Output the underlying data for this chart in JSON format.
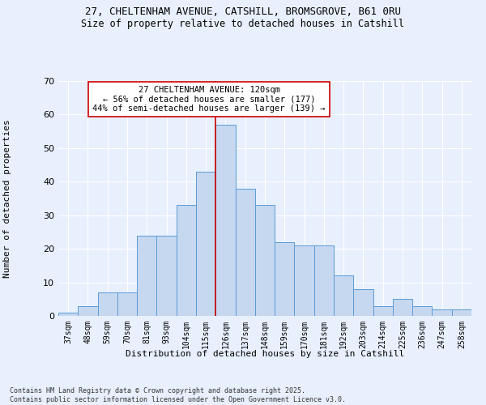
{
  "title_line1": "27, CHELTENHAM AVENUE, CATSHILL, BROMSGROVE, B61 0RU",
  "title_line2": "Size of property relative to detached houses in Catshill",
  "xlabel": "Distribution of detached houses by size in Catshill",
  "ylabel": "Number of detached properties",
  "footer_line1": "Contains HM Land Registry data © Crown copyright and database right 2025.",
  "footer_line2": "Contains public sector information licensed under the Open Government Licence v3.0.",
  "categories": [
    "37sqm",
    "48sqm",
    "59sqm",
    "70sqm",
    "81sqm",
    "93sqm",
    "104sqm",
    "115sqm",
    "126sqm",
    "137sqm",
    "148sqm",
    "159sqm",
    "170sqm",
    "181sqm",
    "192sqm",
    "203sqm",
    "214sqm",
    "225sqm",
    "236sqm",
    "247sqm",
    "258sqm"
  ],
  "values": [
    1,
    3,
    7,
    7,
    24,
    24,
    33,
    43,
    57,
    38,
    33,
    22,
    21,
    21,
    12,
    8,
    3,
    5,
    3,
    2,
    2
  ],
  "bar_color": "#c5d8f0",
  "bar_edge_color": "#5b9bd5",
  "annotation_text": "27 CHELTENHAM AVENUE: 120sqm\n← 56% of detached houses are smaller (177)\n44% of semi-detached houses are larger (139) →",
  "vline_x_index": 8,
  "vline_color": "#cc0000",
  "annotation_box_edge": "#cc0000",
  "background_color": "#e8f0fe",
  "ylim": [
    0,
    70
  ],
  "yticks": [
    0,
    10,
    20,
    30,
    40,
    50,
    60,
    70
  ]
}
